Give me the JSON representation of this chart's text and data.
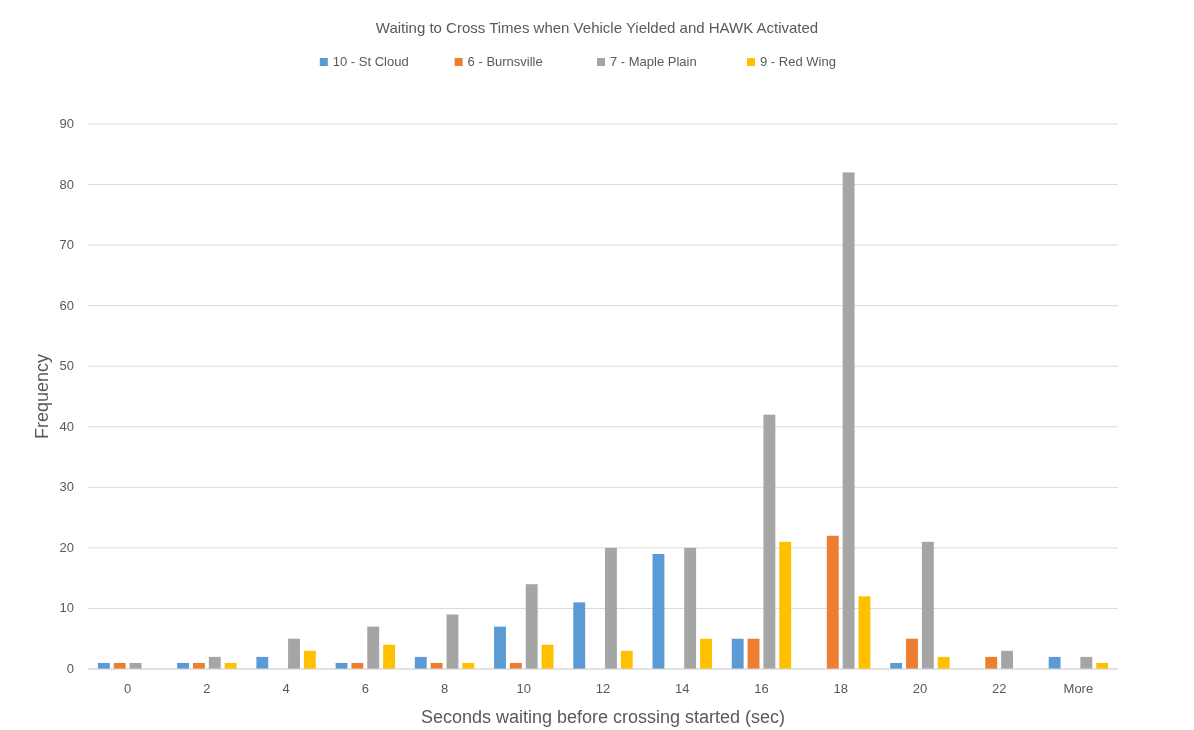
{
  "chart_data": {
    "type": "bar",
    "title": "Waiting to Cross Times when Vehicle Yielded and HAWK Activated",
    "xlabel": "Seconds waiting before crossing started (sec)",
    "ylabel": "Frequency",
    "categories": [
      "0",
      "2",
      "4",
      "6",
      "8",
      "10",
      "12",
      "14",
      "16",
      "18",
      "20",
      "22",
      "More"
    ],
    "series": [
      {
        "name": "10 - St Cloud",
        "color": "#5b9bd5",
        "values": [
          1,
          1,
          2,
          1,
          2,
          7,
          11,
          19,
          5,
          0,
          1,
          0,
          2
        ]
      },
      {
        "name": "6 - Burnsville",
        "color": "#ed7d31",
        "values": [
          1,
          1,
          0,
          1,
          1,
          1,
          0,
          0,
          5,
          22,
          5,
          2,
          0
        ]
      },
      {
        "name": "7 - Maple Plain",
        "color": "#a5a5a5",
        "values": [
          1,
          2,
          5,
          7,
          9,
          14,
          20,
          20,
          42,
          82,
          21,
          3,
          2
        ]
      },
      {
        "name": "9 - Red Wing",
        "color": "#ffc000",
        "values": [
          0,
          1,
          3,
          4,
          1,
          4,
          3,
          5,
          21,
          12,
          2,
          0,
          1
        ]
      }
    ],
    "ylim": [
      0,
      90
    ],
    "yticks": [
      0,
      10,
      20,
      30,
      40,
      50,
      60,
      70,
      80,
      90
    ],
    "grid": "y",
    "legend": "top"
  }
}
